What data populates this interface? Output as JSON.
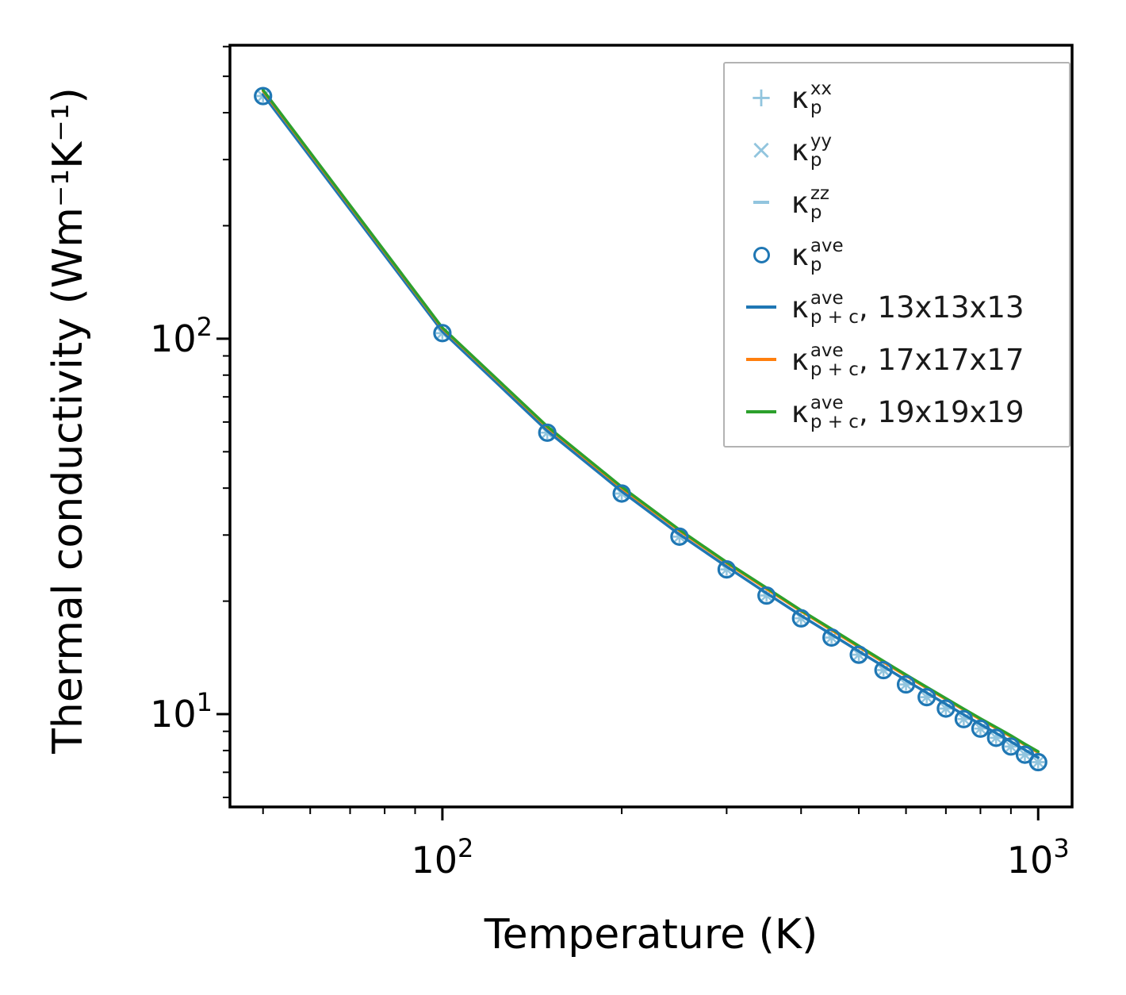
{
  "chart_data": {
    "type": "line",
    "title": "",
    "xlabel": "Temperature (K)",
    "ylabel": "Thermal conductivity (Wm⁻¹K⁻¹)",
    "x_scale": "log",
    "y_scale": "log",
    "grid": false,
    "xlim": [
      44,
      1140
    ],
    "ylim": [
      5.66,
      605
    ],
    "x_major_ticks": [
      100,
      1000
    ],
    "y_major_ticks": [
      10,
      100
    ],
    "colors": {
      "light_blue": "#92c5de",
      "blue": "#1f77b4",
      "orange": "#ff7f0e",
      "green": "#2ca02c",
      "spine": "#000000",
      "legend_border": "#b3b3b3"
    },
    "temperatures": [
      50,
      100,
      150,
      200,
      250,
      300,
      350,
      400,
      450,
      500,
      550,
      600,
      650,
      700,
      750,
      800,
      850,
      900,
      950,
      1000
    ],
    "series": [
      {
        "name": "kappa_p_xx",
        "marker": "plus",
        "color": "#92c5de",
        "values": [
          443,
          103.5,
          56.2,
          38.7,
          29.7,
          24.3,
          20.7,
          18.0,
          16.0,
          14.4,
          13.1,
          12.0,
          11.1,
          10.35,
          9.7,
          9.15,
          8.65,
          8.2,
          7.8,
          7.45
        ]
      },
      {
        "name": "kappa_p_yy",
        "marker": "x",
        "color": "#92c5de",
        "values": [
          443,
          103.5,
          56.2,
          38.7,
          29.7,
          24.3,
          20.7,
          18.0,
          16.0,
          14.4,
          13.1,
          12.0,
          11.1,
          10.35,
          9.7,
          9.15,
          8.65,
          8.2,
          7.8,
          7.45
        ]
      },
      {
        "name": "kappa_p_zz",
        "marker": "hline",
        "color": "#92c5de",
        "values": [
          443,
          103.5,
          56.2,
          38.7,
          29.7,
          24.3,
          20.7,
          18.0,
          16.0,
          14.4,
          13.1,
          12.0,
          11.1,
          10.35,
          9.7,
          9.15,
          8.65,
          8.2,
          7.8,
          7.45
        ]
      },
      {
        "name": "kappa_p+c_ave_13x13x13",
        "marker": "line",
        "color": "#1f77b4",
        "values": [
          447,
          104.5,
          56.8,
          39.2,
          30.1,
          24.7,
          21.0,
          18.3,
          16.3,
          14.7,
          13.4,
          12.3,
          11.4,
          10.63,
          9.97,
          9.4,
          8.9,
          8.45,
          8.03,
          7.66
        ]
      },
      {
        "name": "kappa_p+c_ave_17x17x17",
        "marker": "line",
        "color": "#ff7f0e",
        "values": [
          457,
          106.5,
          58.1,
          40.0,
          30.8,
          25.25,
          21.55,
          18.8,
          16.75,
          15.1,
          13.76,
          12.65,
          11.74,
          10.95,
          10.27,
          9.68,
          9.17,
          8.71,
          8.28,
          7.9
        ]
      },
      {
        "name": "kappa_p+c_ave_19x19x19",
        "marker": "line",
        "color": "#2ca02c",
        "values": [
          460,
          107,
          58.4,
          40.3,
          31.0,
          25.4,
          21.7,
          18.9,
          16.85,
          15.2,
          13.85,
          12.73,
          11.81,
          11.02,
          10.33,
          9.74,
          9.23,
          8.77,
          8.33,
          7.95
        ]
      },
      {
        "name": "kappa_p_ave",
        "marker": "circle",
        "color": "#1f77b4",
        "values": [
          443,
          103.5,
          56.2,
          38.7,
          29.7,
          24.3,
          20.7,
          18.0,
          16.0,
          14.4,
          13.1,
          12.0,
          11.1,
          10.35,
          9.7,
          9.15,
          8.65,
          8.2,
          7.8,
          7.45
        ]
      }
    ],
    "legend": {
      "position": "upper right",
      "entries": [
        {
          "kappa": "κ",
          "sup": "xx",
          "sub": "p",
          "suffix": "",
          "marker": "plus",
          "color": "#92c5de"
        },
        {
          "kappa": "κ",
          "sup": "yy",
          "sub": "p",
          "suffix": "",
          "marker": "x",
          "color": "#92c5de"
        },
        {
          "kappa": "κ",
          "sup": "zz",
          "sub": "p",
          "suffix": "",
          "marker": "hline",
          "color": "#92c5de"
        },
        {
          "kappa": "κ",
          "sup": "ave",
          "sub": "p",
          "suffix": "",
          "marker": "circle",
          "color": "#1f77b4"
        },
        {
          "kappa": "κ",
          "sup": "ave",
          "sub": "p + c",
          "suffix": ", 13x13x13",
          "marker": "line",
          "color": "#1f77b4"
        },
        {
          "kappa": "κ",
          "sup": "ave",
          "sub": "p + c",
          "suffix": ", 17x17x17",
          "marker": "line",
          "color": "#ff7f0e"
        },
        {
          "kappa": "κ",
          "sup": "ave",
          "sub": "p + c",
          "suffix": ", 19x19x19",
          "marker": "line",
          "color": "#2ca02c"
        }
      ]
    }
  }
}
